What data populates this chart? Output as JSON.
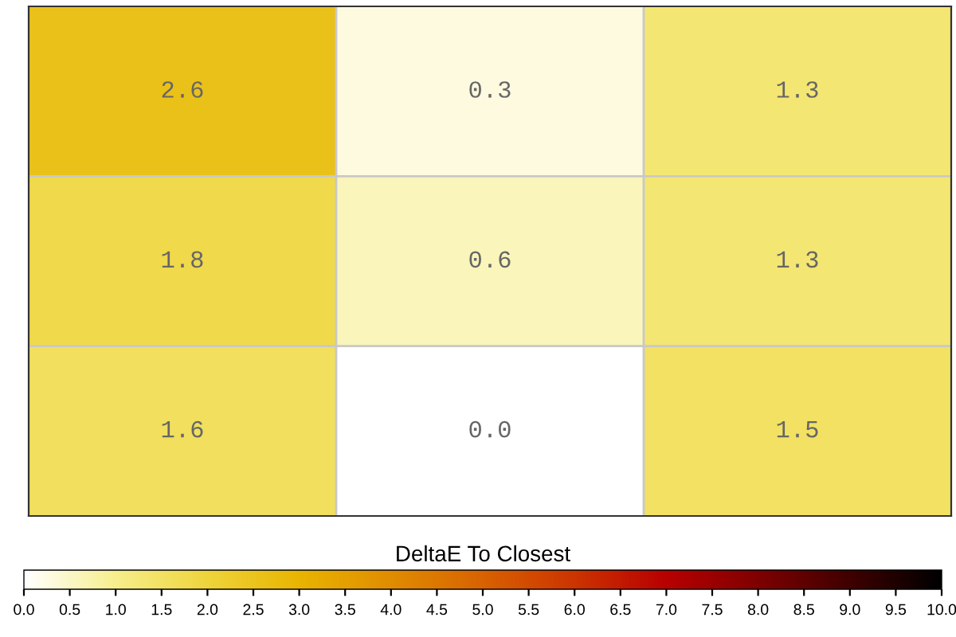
{
  "chart_data": {
    "type": "heatmap",
    "clabel": "DeltaE To Closest",
    "categories": [
      null,
      null,
      null
    ],
    "y_categories": [
      null,
      null,
      null
    ],
    "cells": [
      [
        2.6,
        0.3,
        1.3
      ],
      [
        1.8,
        0.6,
        1.3
      ],
      [
        1.6,
        0,
        1.5
      ]
    ],
    "cell_labels": [
      [
        "2.6",
        "0.3",
        "1.3"
      ],
      [
        "1.8",
        "0.6",
        "1.3"
      ],
      [
        "1.6",
        "0.0",
        "1.5"
      ]
    ],
    "data_labels": true,
    "clim": [
      0,
      10
    ],
    "cticks": [
      {
        "value": 0,
        "label": "0.0"
      },
      0.5,
      {
        "value": 1,
        "label": "1.0"
      },
      1.5,
      {
        "value": 2,
        "label": "2.0"
      },
      2.5,
      {
        "value": 3,
        "label": "3.0"
      },
      3.5,
      {
        "value": 4,
        "label": "4.0"
      },
      4.5,
      {
        "value": 5,
        "label": "5.0"
      },
      5.5,
      {
        "value": 6,
        "label": "6.0"
      },
      6.5,
      {
        "value": 7,
        "label": "7.0"
      },
      7.5,
      {
        "value": 8,
        "label": "8.0"
      },
      8.5,
      {
        "value": 9,
        "label": "9.0"
      },
      9.5,
      {
        "value": 10,
        "label": "10.0"
      }
    ],
    "grid": true
  }
}
